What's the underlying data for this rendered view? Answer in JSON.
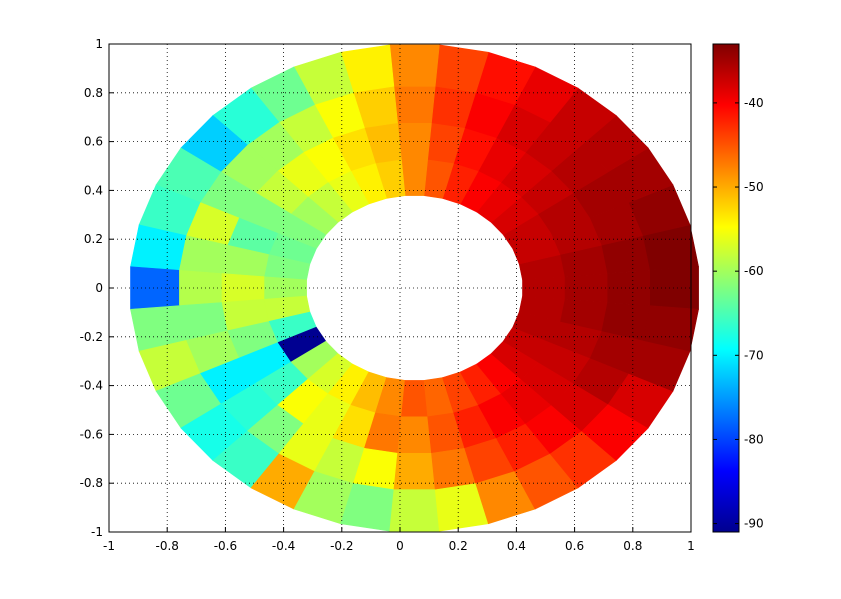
{
  "chart_data": {
    "type": "heatmap",
    "subtype": "polar-annulus",
    "title": "",
    "xlabel": "",
    "ylabel": "",
    "xlim": [
      -1,
      1
    ],
    "ylim": [
      -1,
      1
    ],
    "xticks": [
      "-1",
      "-0.8",
      "-0.6",
      "-0.4",
      "-0.2",
      "0",
      "0.2",
      "0.4",
      "0.6",
      "0.8",
      "1"
    ],
    "yticks": [
      "1",
      "0.8",
      "0.6",
      "0.4",
      "0.2",
      "0",
      "-0.2",
      "-0.4",
      "-0.6",
      "-0.8",
      "-1"
    ],
    "grid": "dotted",
    "colormap": "jet",
    "clim": [
      -91,
      -33
    ],
    "colorbar_position": "right",
    "colorbar_ticks": [
      "-40",
      "-50",
      "-60",
      "-70",
      "-80",
      "-90"
    ],
    "ring_radii": [
      0.38,
      0.53,
      0.68,
      0.83,
      1.0
    ],
    "ring_x_scale": 0.98,
    "ring_x_offset": 0.05,
    "sector_count": 36,
    "sector_step_deg": 10,
    "values_by_ring": [
      [
        -36,
        -36,
        -37,
        -37,
        -38,
        -39,
        -40,
        -42,
        -45,
        -48,
        -52,
        -54,
        -56,
        -58,
        -60,
        -62,
        -63,
        -62,
        -60,
        -58,
        -66,
        -90,
        -60,
        -57,
        -54,
        -51,
        -48,
        -45,
        -46,
        -44,
        -42,
        -40,
        -38,
        -37,
        -36,
        -36
      ],
      [
        -35,
        -35,
        -36,
        -36,
        -37,
        -38,
        -39,
        -41,
        -44,
        -48,
        -51,
        -53,
        -55,
        -56,
        -58,
        -62,
        -64,
        -60,
        -57,
        -58,
        -62,
        -70,
        -66,
        -55,
        -56,
        -53,
        -47,
        -48,
        -45,
        -42,
        -40,
        -39,
        -38,
        -37,
        -36,
        -35
      ],
      [
        -34,
        -34,
        -35,
        -35,
        -36,
        -37,
        -38,
        -40,
        -43,
        -47,
        -52,
        -55,
        -58,
        -60,
        -60,
        -62,
        -57,
        -60,
        -59,
        -62,
        -60,
        -70,
        -67,
        -62,
        -56,
        -58,
        -55,
        -50,
        -47,
        -44,
        -42,
        -40,
        -38,
        -36,
        -35,
        -34
      ],
      [
        -33,
        -33,
        -34,
        -35,
        -36,
        -37,
        -39,
        -41,
        -44,
        -48,
        -54,
        -58,
        -63,
        -67,
        -72,
        -65,
        -66,
        -70,
        -78,
        -62,
        -58,
        -63,
        -68,
        -66,
        -50,
        -60,
        -62,
        -58,
        -56,
        -48,
        -45,
        -43,
        -40,
        -38,
        -35,
        -34
      ]
    ]
  }
}
